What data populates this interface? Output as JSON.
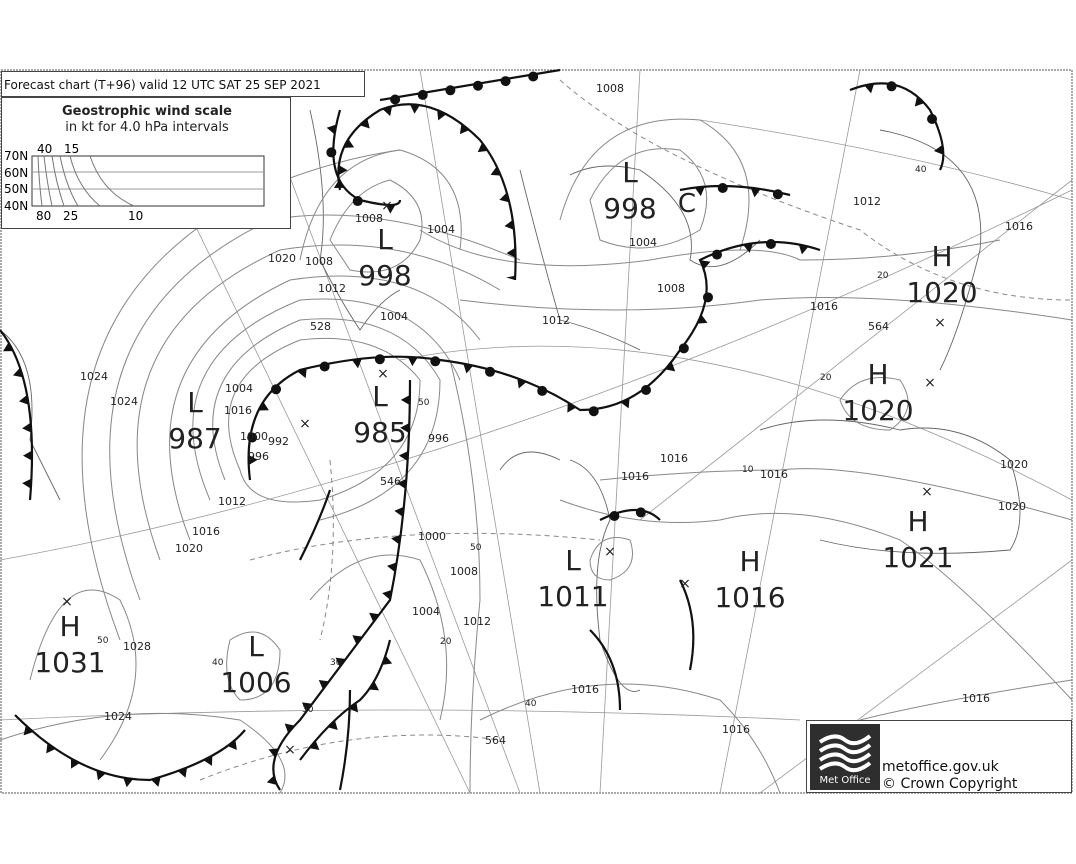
{
  "header": {
    "title": "Forecast chart (T+96) valid 12 UTC SAT 25  SEP 2021"
  },
  "wind_scale": {
    "title": "Geostrophic wind scale",
    "subtitle": "in kt for 4.0 hPa intervals",
    "latitudes": [
      "70N",
      "60N",
      "50N",
      "40N"
    ],
    "top_ticks": [
      "40",
      "15"
    ],
    "bottom_ticks": [
      "80",
      "25",
      "10"
    ]
  },
  "pressure_centres": [
    {
      "type": "L",
      "value": "998"
    },
    {
      "type": "L",
      "value": "998"
    },
    {
      "type": "H",
      "value": "1020"
    },
    {
      "type": "H",
      "value": "1020"
    },
    {
      "type": "L",
      "value": "987"
    },
    {
      "type": "L",
      "value": "985"
    },
    {
      "type": "H",
      "value": "1021"
    },
    {
      "type": "L",
      "value": "1011"
    },
    {
      "type": "H",
      "value": "1016"
    },
    {
      "type": "H",
      "value": "1031"
    },
    {
      "type": "L",
      "value": "1006"
    }
  ],
  "extra_mark": "C",
  "isobar_labels": [
    "1008",
    "1004",
    "1008",
    "1012",
    "1020",
    "1016",
    "1012",
    "1008",
    "1004",
    "1008",
    "1016",
    "564",
    "1016",
    "1012",
    "1004",
    "1000",
    "996",
    "992",
    "1024",
    "1024",
    "1016",
    "1012",
    "1020",
    "528",
    "546",
    "996",
    "1000",
    "1008",
    "1004",
    "1012",
    "1016",
    "1020",
    "1016",
    "1016",
    "1016",
    "1028",
    "1024",
    "1016",
    "564",
    "1020",
    "1016",
    "1004"
  ],
  "wind_labels": [
    "50",
    "50",
    "40",
    "30",
    "20",
    "10",
    "50",
    "40",
    "30",
    "20",
    "20",
    "40"
  ],
  "footer": {
    "logo_text": "Met Office",
    "url": "metoffice.gov.uk",
    "copyright": "© Crown Copyright"
  },
  "colors": {
    "isobar": "#888888",
    "front": "#111111",
    "background": "#ffffff"
  }
}
